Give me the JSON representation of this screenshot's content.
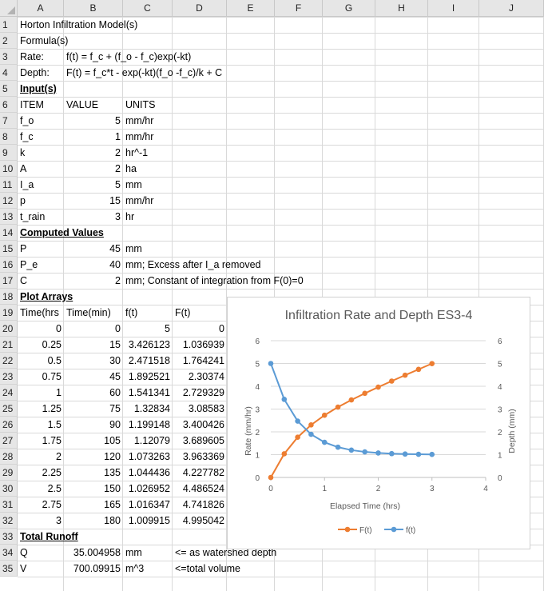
{
  "columns": [
    "A",
    "B",
    "C",
    "D",
    "E",
    "F",
    "G",
    "H",
    "I",
    "J"
  ],
  "rows": [
    {
      "n": "1",
      "cells": [
        {
          "c": "A",
          "t": "Horton Infiltration Model(s)"
        }
      ]
    },
    {
      "n": "2",
      "cells": [
        {
          "c": "A",
          "t": "Formula(s)"
        }
      ]
    },
    {
      "n": "3",
      "cells": [
        {
          "c": "A",
          "t": "Rate:"
        },
        {
          "c": "B",
          "t": "f(t) = f_c + (f_o - f_c)exp(-kt)"
        }
      ]
    },
    {
      "n": "4",
      "cells": [
        {
          "c": "A",
          "t": "Depth:"
        },
        {
          "c": "B",
          "t": "F(t) = f_c*t - exp(-kt)(f_o -f_c)/k + C"
        }
      ]
    },
    {
      "n": "5",
      "cells": [
        {
          "c": "A",
          "t": "Input(s)",
          "s": "bu"
        }
      ]
    },
    {
      "n": "6",
      "cells": [
        {
          "c": "A",
          "t": "ITEM"
        },
        {
          "c": "B",
          "t": "VALUE"
        },
        {
          "c": "C",
          "t": "UNITS"
        }
      ]
    },
    {
      "n": "7",
      "cells": [
        {
          "c": "A",
          "t": "f_o"
        },
        {
          "c": "B",
          "t": "5",
          "r": 1
        },
        {
          "c": "C",
          "t": "mm/hr"
        }
      ]
    },
    {
      "n": "8",
      "cells": [
        {
          "c": "A",
          "t": "f_c"
        },
        {
          "c": "B",
          "t": "1",
          "r": 1
        },
        {
          "c": "C",
          "t": "mm/hr"
        }
      ]
    },
    {
      "n": "9",
      "cells": [
        {
          "c": "A",
          "t": "k"
        },
        {
          "c": "B",
          "t": "2",
          "r": 1
        },
        {
          "c": "C",
          "t": "hr^-1"
        }
      ]
    },
    {
      "n": "10",
      "cells": [
        {
          "c": "A",
          "t": "A"
        },
        {
          "c": "B",
          "t": "2",
          "r": 1
        },
        {
          "c": "C",
          "t": "ha"
        }
      ]
    },
    {
      "n": "11",
      "cells": [
        {
          "c": "A",
          "t": "I_a"
        },
        {
          "c": "B",
          "t": "5",
          "r": 1
        },
        {
          "c": "C",
          "t": "mm"
        }
      ]
    },
    {
      "n": "12",
      "cells": [
        {
          "c": "A",
          "t": "p"
        },
        {
          "c": "B",
          "t": "15",
          "r": 1
        },
        {
          "c": "C",
          "t": "mm/hr"
        }
      ]
    },
    {
      "n": "13",
      "cells": [
        {
          "c": "A",
          "t": "t_rain"
        },
        {
          "c": "B",
          "t": "3",
          "r": 1
        },
        {
          "c": "C",
          "t": "hr"
        }
      ]
    },
    {
      "n": "14",
      "cells": [
        {
          "c": "A",
          "t": "Computed Values",
          "s": "bu"
        }
      ]
    },
    {
      "n": "15",
      "cells": [
        {
          "c": "A",
          "t": "P"
        },
        {
          "c": "B",
          "t": "45",
          "r": 1
        },
        {
          "c": "C",
          "t": "mm"
        }
      ]
    },
    {
      "n": "16",
      "cells": [
        {
          "c": "A",
          "t": "P_e"
        },
        {
          "c": "B",
          "t": "40",
          "r": 1
        },
        {
          "c": "C",
          "t": "mm; Excess after I_a removed"
        }
      ]
    },
    {
      "n": "17",
      "cells": [
        {
          "c": "A",
          "t": "C"
        },
        {
          "c": "B",
          "t": "2",
          "r": 1
        },
        {
          "c": "C",
          "t": "mm; Constant of integration from F(0)=0"
        }
      ]
    },
    {
      "n": "18",
      "cells": [
        {
          "c": "A",
          "t": "Plot Arrays",
          "s": "bu"
        }
      ]
    },
    {
      "n": "19",
      "cells": [
        {
          "c": "A",
          "t": "Time(hrs"
        },
        {
          "c": "B",
          "t": "Time(min)"
        },
        {
          "c": "C",
          "t": "f(t)"
        },
        {
          "c": "D",
          "t": "F(t)"
        }
      ]
    },
    {
      "n": "20",
      "cells": [
        {
          "c": "A",
          "t": "0",
          "r": 1
        },
        {
          "c": "B",
          "t": "0",
          "r": 1
        },
        {
          "c": "C",
          "t": "5",
          "r": 1
        },
        {
          "c": "D",
          "t": "0",
          "r": 1
        }
      ]
    },
    {
      "n": "21",
      "cells": [
        {
          "c": "A",
          "t": "0.25",
          "r": 1
        },
        {
          "c": "B",
          "t": "15",
          "r": 1
        },
        {
          "c": "C",
          "t": "3.426123",
          "r": 1
        },
        {
          "c": "D",
          "t": "1.036939",
          "r": 1
        }
      ]
    },
    {
      "n": "22",
      "cells": [
        {
          "c": "A",
          "t": "0.5",
          "r": 1
        },
        {
          "c": "B",
          "t": "30",
          "r": 1
        },
        {
          "c": "C",
          "t": "2.471518",
          "r": 1
        },
        {
          "c": "D",
          "t": "1.764241",
          "r": 1
        }
      ]
    },
    {
      "n": "23",
      "cells": [
        {
          "c": "A",
          "t": "0.75",
          "r": 1
        },
        {
          "c": "B",
          "t": "45",
          "r": 1
        },
        {
          "c": "C",
          "t": "1.892521",
          "r": 1
        },
        {
          "c": "D",
          "t": "2.30374",
          "r": 1
        }
      ]
    },
    {
      "n": "24",
      "cells": [
        {
          "c": "A",
          "t": "1",
          "r": 1
        },
        {
          "c": "B",
          "t": "60",
          "r": 1
        },
        {
          "c": "C",
          "t": "1.541341",
          "r": 1
        },
        {
          "c": "D",
          "t": "2.729329",
          "r": 1
        }
      ]
    },
    {
      "n": "25",
      "cells": [
        {
          "c": "A",
          "t": "1.25",
          "r": 1
        },
        {
          "c": "B",
          "t": "75",
          "r": 1
        },
        {
          "c": "C",
          "t": "1.32834",
          "r": 1
        },
        {
          "c": "D",
          "t": "3.08583",
          "r": 1
        }
      ]
    },
    {
      "n": "26",
      "cells": [
        {
          "c": "A",
          "t": "1.5",
          "r": 1
        },
        {
          "c": "B",
          "t": "90",
          "r": 1
        },
        {
          "c": "C",
          "t": "1.199148",
          "r": 1
        },
        {
          "c": "D",
          "t": "3.400426",
          "r": 1
        }
      ]
    },
    {
      "n": "27",
      "cells": [
        {
          "c": "A",
          "t": "1.75",
          "r": 1
        },
        {
          "c": "B",
          "t": "105",
          "r": 1
        },
        {
          "c": "C",
          "t": "1.12079",
          "r": 1
        },
        {
          "c": "D",
          "t": "3.689605",
          "r": 1
        }
      ]
    },
    {
      "n": "28",
      "cells": [
        {
          "c": "A",
          "t": "2",
          "r": 1
        },
        {
          "c": "B",
          "t": "120",
          "r": 1
        },
        {
          "c": "C",
          "t": "1.073263",
          "r": 1
        },
        {
          "c": "D",
          "t": "3.963369",
          "r": 1
        }
      ]
    },
    {
      "n": "29",
      "cells": [
        {
          "c": "A",
          "t": "2.25",
          "r": 1
        },
        {
          "c": "B",
          "t": "135",
          "r": 1
        },
        {
          "c": "C",
          "t": "1.044436",
          "r": 1
        },
        {
          "c": "D",
          "t": "4.227782",
          "r": 1
        }
      ]
    },
    {
      "n": "30",
      "cells": [
        {
          "c": "A",
          "t": "2.5",
          "r": 1
        },
        {
          "c": "B",
          "t": "150",
          "r": 1
        },
        {
          "c": "C",
          "t": "1.026952",
          "r": 1
        },
        {
          "c": "D",
          "t": "4.486524",
          "r": 1
        }
      ]
    },
    {
      "n": "31",
      "cells": [
        {
          "c": "A",
          "t": "2.75",
          "r": 1
        },
        {
          "c": "B",
          "t": "165",
          "r": 1
        },
        {
          "c": "C",
          "t": "1.016347",
          "r": 1
        },
        {
          "c": "D",
          "t": "4.741826",
          "r": 1
        }
      ]
    },
    {
      "n": "32",
      "cells": [
        {
          "c": "A",
          "t": "3",
          "r": 1
        },
        {
          "c": "B",
          "t": "180",
          "r": 1
        },
        {
          "c": "C",
          "t": "1.009915",
          "r": 1
        },
        {
          "c": "D",
          "t": "4.995042",
          "r": 1
        }
      ]
    },
    {
      "n": "33",
      "cells": [
        {
          "c": "A",
          "t": "Total Runoff",
          "s": "bu"
        }
      ]
    },
    {
      "n": "34",
      "cells": [
        {
          "c": "A",
          "t": "Q"
        },
        {
          "c": "B",
          "t": "35.004958",
          "r": 1
        },
        {
          "c": "C",
          "t": "mm"
        },
        {
          "c": "D",
          "t": "<= as watershed depth"
        }
      ]
    },
    {
      "n": "35",
      "cells": [
        {
          "c": "A",
          "t": "V"
        },
        {
          "c": "B",
          "t": "700.09915",
          "r": 1
        },
        {
          "c": "C",
          "t": "m^3"
        },
        {
          "c": "D",
          "t": "<=total volume"
        }
      ]
    }
  ],
  "chart_data": {
    "type": "line",
    "title": "Infiltration Rate and Depth ES3-4",
    "xlabel": "Elapsed Time (hrs)",
    "ylabel": "Rate (mm/hr)",
    "y2label": "Depth (mm)",
    "xlim": [
      0,
      4
    ],
    "ylim": [
      0,
      6
    ],
    "y2lim": [
      0,
      6
    ],
    "xticks": [
      "0",
      "1",
      "2",
      "3",
      "4"
    ],
    "yticks": [
      "0",
      "1",
      "2",
      "3",
      "4",
      "5",
      "6"
    ],
    "y2ticks": [
      "0",
      "1",
      "2",
      "3",
      "4",
      "5",
      "6"
    ],
    "grid": true,
    "legend_position": "bottom",
    "x": [
      0,
      0.25,
      0.5,
      0.75,
      1,
      1.25,
      1.5,
      1.75,
      2,
      2.25,
      2.5,
      2.75,
      3
    ],
    "series": [
      {
        "name": "F(t)",
        "axis": "right",
        "color": "#ED7D31",
        "values": [
          0,
          1.036939,
          1.764241,
          2.30374,
          2.729329,
          3.08583,
          3.400426,
          3.689605,
          3.963369,
          4.227782,
          4.486524,
          4.741826,
          4.995042
        ]
      },
      {
        "name": "f(t)",
        "axis": "left",
        "color": "#5B9BD5",
        "values": [
          5,
          3.426123,
          2.471518,
          1.892521,
          1.541341,
          1.32834,
          1.199148,
          1.12079,
          1.073263,
          1.044436,
          1.026952,
          1.016347,
          1.009915
        ]
      }
    ]
  }
}
